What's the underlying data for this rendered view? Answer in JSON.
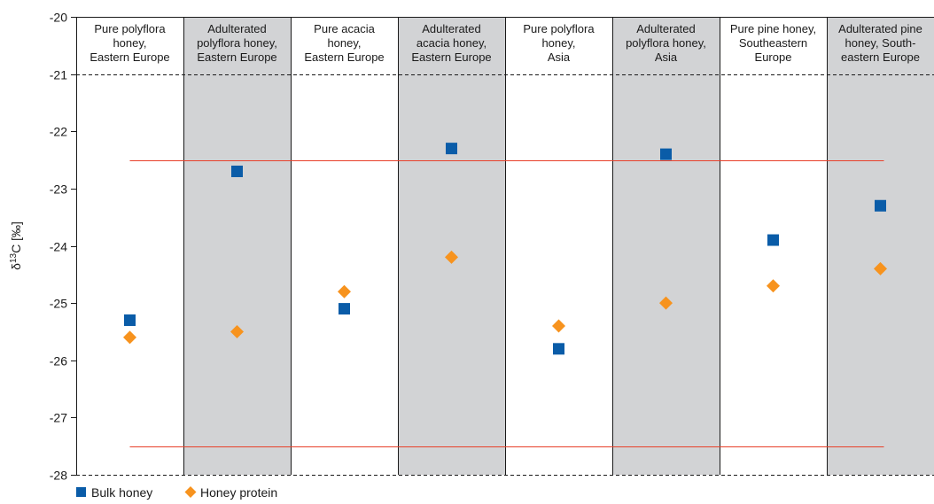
{
  "chart_data": {
    "type": "scatter",
    "ylabel": "δ13C [‰]",
    "ylim": [
      -28,
      -20
    ],
    "y_ticks": [
      -20,
      -21,
      -22,
      -23,
      -24,
      -25,
      -26,
      -27,
      -28
    ],
    "grid": false,
    "dashed_reference_y": -21,
    "reference_lines": [
      -22.5,
      -27.5
    ],
    "legend_position": "bottom-left",
    "categories": [
      {
        "label": [
          "Pure polyflora",
          "honey,",
          "Eastern Europe"
        ],
        "shaded": false
      },
      {
        "label": [
          "Adulterated",
          "polyflora honey,",
          "Eastern Europe"
        ],
        "shaded": true
      },
      {
        "label": [
          "Pure acacia",
          "honey,",
          "Eastern Europe"
        ],
        "shaded": false
      },
      {
        "label": [
          "Adulterated",
          "acacia honey,",
          "Eastern Europe"
        ],
        "shaded": true
      },
      {
        "label": [
          "Pure polyflora",
          "honey,",
          "Asia"
        ],
        "shaded": false
      },
      {
        "label": [
          "Adulterated",
          "polyflora honey,",
          "Asia"
        ],
        "shaded": true
      },
      {
        "label": [
          "Pure pine honey,",
          "Southeastern",
          "Europe"
        ],
        "shaded": false
      },
      {
        "label": [
          "Adulterated pine",
          "honey, South-",
          "eastern Europe"
        ],
        "shaded": true
      }
    ],
    "series": [
      {
        "name": "Bulk honey",
        "marker": "square",
        "color": "#0a5ca8",
        "values": [
          -25.3,
          -22.7,
          -25.1,
          -22.3,
          -25.8,
          -22.4,
          -23.9,
          -23.3
        ]
      },
      {
        "name": "Honey protein",
        "marker": "diamond",
        "color": "#f7931e",
        "values": [
          -25.6,
          -25.5,
          -24.8,
          -24.2,
          -25.4,
          -25.0,
          -24.7,
          -24.4
        ]
      }
    ],
    "colors": {
      "shade": "#d2d3d5",
      "reference": "#e8402a",
      "axis": "#1a1a1a"
    }
  }
}
